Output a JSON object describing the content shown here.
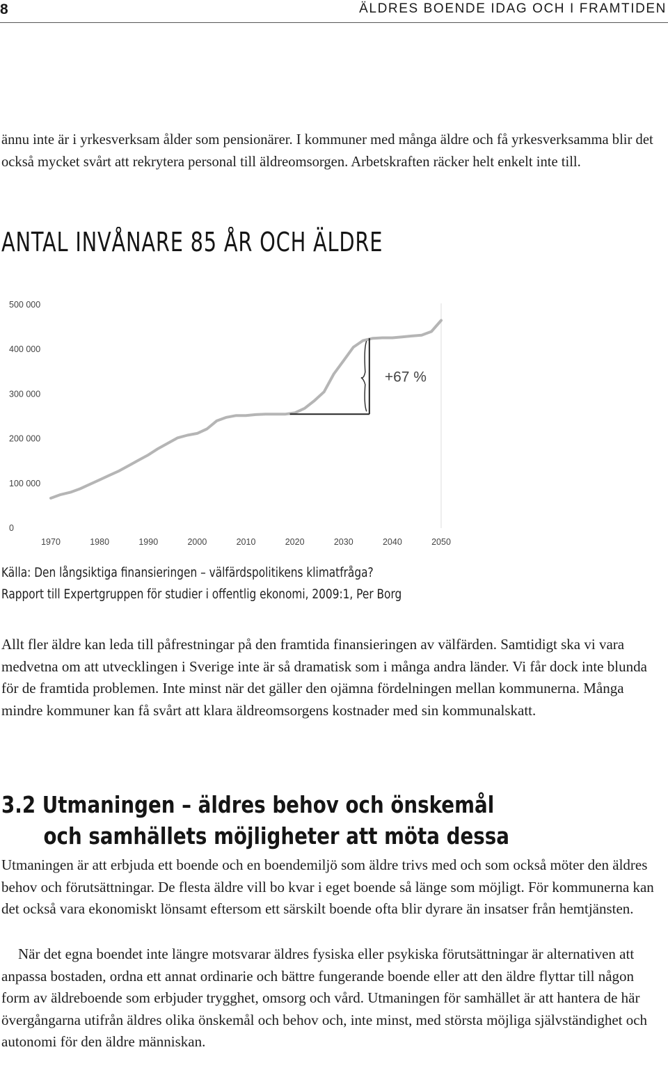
{
  "header": {
    "page_number": "8",
    "running_title": "ÄLDRES BOENDE IDAG OCH I FRAMTIDEN"
  },
  "paragraphs": {
    "intro": "ännu inte är i yrkesverksam ålder som pensionärer. I kommuner med många äldre och få yrkesverksamma blir det också mycket svårt att rekrytera personal till äldreomsorgen. Arbetskraften räcker helt enkelt inte till.",
    "after_chart": "Allt fler äldre kan leda till påfrestningar på den framtida finansieringen av välfärden. Samtidigt ska vi vara medvetna om att utvecklingen i Sverige inte är så dramatisk som i många andra länder. Vi får dock inte blunda för de framtida problemen. Inte minst när det gäller den ojämna fördelningen mellan kommunerna. Många mindre kommuner kan få svårt att klara äldreomsorgens kostnader med sin kommunalskatt.",
    "section_p1": "Utmaningen är att erbjuda ett boende och en boendemiljö som äldre trivs med och som också möter den äldres behov och förutsättningar. De flesta äldre vill bo kvar i eget boende så länge som möjligt. För kommunerna kan det också vara ekonomiskt lönsamt eftersom ett särskilt boende ofta blir dyrare än insatser från hemtjänsten.",
    "section_p2": "När det egna boendet inte längre motsvarar äldres fysiska eller psykiska förutsättningar är alternativen att anpassa bostaden, ordna ett annat ordinarie och bättre fungerande boende eller att den äldre flyttar till någon form av äldreboende som erbjuder trygghet, omsorg och vård. Utmaningen för samhället är att hantera de här övergångarna utifrån äldres olika önskemål och behov och, inte minst, med största möjliga självständighet och autonomi för den äldre människan."
  },
  "figure": {
    "heading": "ANTAL INVÅNARE 85 ÅR OCH ÄLDRE",
    "source_line1": "Källa: Den långsiktiga finansieringen – välfärdspolitikens klimatfråga?",
    "source_line2": "Rapport till Expertgruppen för studier i offentlig ekonomi, 2009:1, Per Borg"
  },
  "section": {
    "number": "3.2",
    "title_line1": "Utmaningen – äldres behov och önskemål",
    "title_line2": "och samhällets möjligheter att möta dessa"
  },
  "chart_data": {
    "type": "line",
    "title": "ANTAL INVÅNARE 85 ÅR OCH ÄLDRE",
    "xlabel": "",
    "ylabel": "",
    "xlim": [
      1970,
      2050
    ],
    "ylim": [
      0,
      500000
    ],
    "x_ticks": [
      1970,
      1980,
      1990,
      2000,
      2010,
      2020,
      2030,
      2040,
      2050
    ],
    "y_ticks": [
      {
        "value": 0,
        "label": "0"
      },
      {
        "value": 100000,
        "label": "100 000"
      },
      {
        "value": 200000,
        "label": "200 000"
      },
      {
        "value": 300000,
        "label": "300 000"
      },
      {
        "value": 400000,
        "label": "400 000"
      },
      {
        "value": 500000,
        "label": "500 000"
      }
    ],
    "grid": "vertical-right-edge-only",
    "line_color": "#b5b5b5",
    "annotation": {
      "text": "+67 %",
      "from_year": 2019,
      "to_year": 2035,
      "from_value": 255000,
      "to_value": 425000
    },
    "series": [
      {
        "x": [
          1970,
          1972,
          1974,
          1976,
          1978,
          1980,
          1982,
          1984,
          1986,
          1988,
          1990,
          1992,
          1994,
          1996,
          1998,
          2000,
          2002,
          2004,
          2006,
          2008,
          2010,
          2012,
          2014,
          2016,
          2018,
          2020,
          2022,
          2024,
          2026,
          2028,
          2030,
          2032,
          2034,
          2036,
          2038,
          2040,
          2042,
          2044,
          2046,
          2048,
          2050
        ],
        "y": [
          67000,
          75000,
          80000,
          88000,
          98000,
          108000,
          118000,
          128000,
          140000,
          152000,
          164000,
          178000,
          190000,
          202000,
          208000,
          212000,
          222000,
          240000,
          248000,
          252000,
          252000,
          254000,
          255000,
          255000,
          255000,
          258000,
          268000,
          285000,
          305000,
          345000,
          375000,
          405000,
          420000,
          425000,
          426000,
          426000,
          428000,
          430000,
          432000,
          440000,
          465000
        ]
      }
    ]
  }
}
